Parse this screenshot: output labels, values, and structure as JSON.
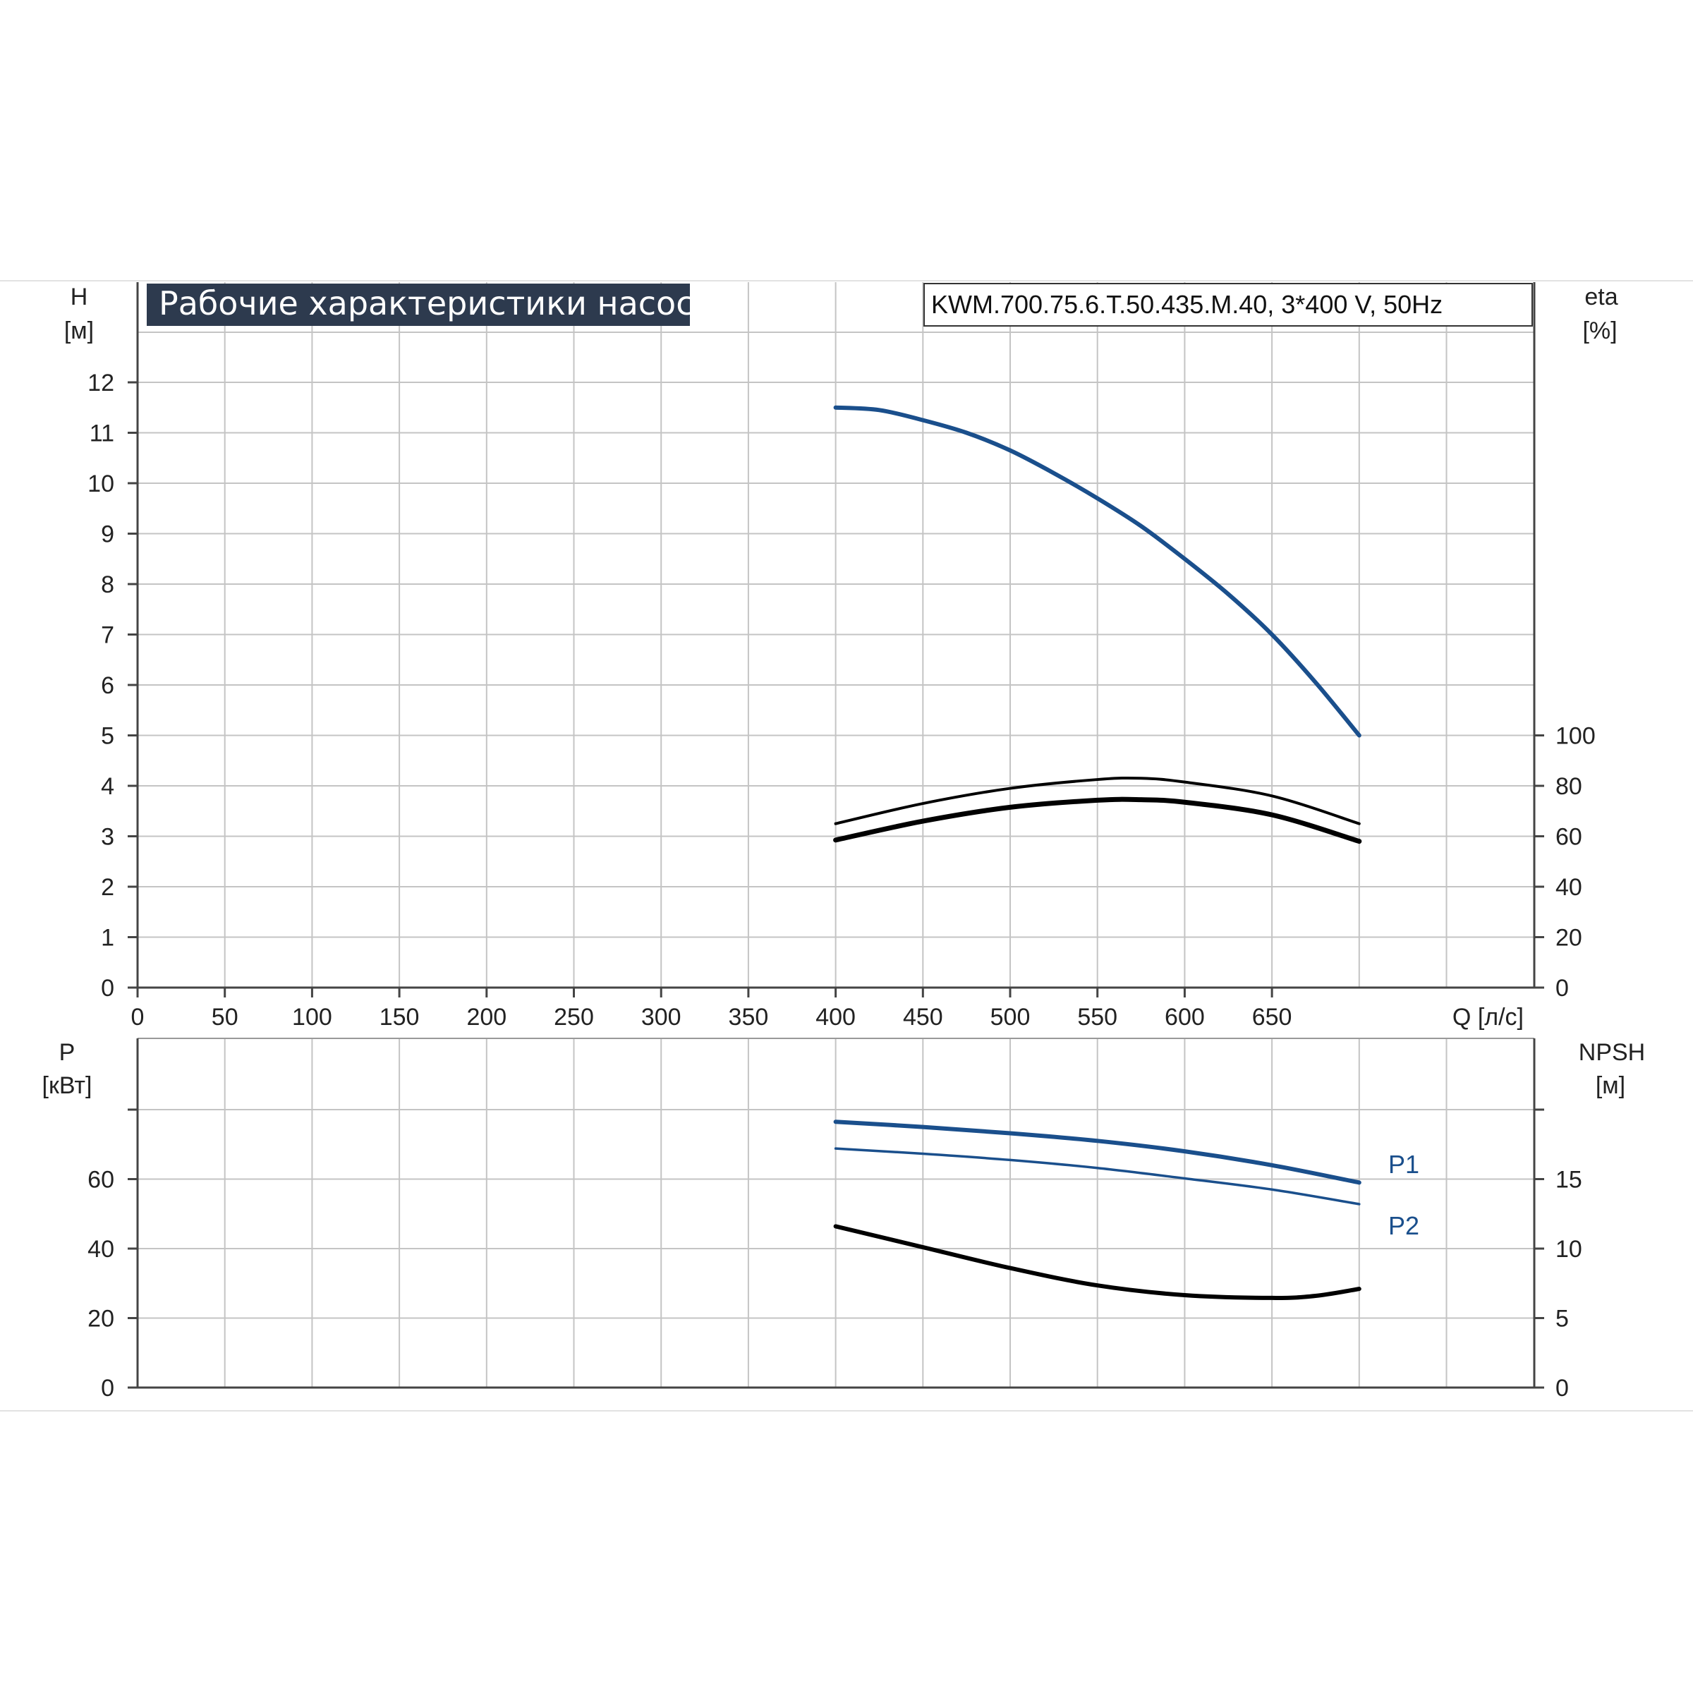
{
  "chart_data": [
    {
      "type": "line",
      "panel": "performance",
      "title": "Рабочие характеристики насоса",
      "subtitle": "KWM.700.75.6.T.50.435.M.40, 3*400 V, 50Hz",
      "xlabel": "Q [л/с]",
      "ylabel_left": [
        "H",
        "[м]"
      ],
      "ylabel_right": [
        "eta",
        "[%]"
      ],
      "xlim": [
        0,
        770
      ],
      "x_ticks": [
        0,
        50,
        100,
        150,
        200,
        250,
        300,
        350,
        400,
        450,
        500,
        550,
        600,
        650
      ],
      "ylim_left": [
        0,
        12
      ],
      "y_ticks_left": [
        0,
        1,
        2,
        3,
        4,
        5,
        6,
        7,
        8,
        9,
        10,
        11,
        12
      ],
      "ylim_right": [
        0,
        100
      ],
      "y_ticks_right": [
        0,
        20,
        40,
        60,
        80,
        100
      ],
      "grid": true,
      "series": [
        {
          "axis": "left",
          "color": "#1a4f8c",
          "x": [
            400,
            425,
            450,
            475,
            500,
            525,
            550,
            575,
            600,
            625,
            650,
            675,
            700
          ],
          "y": [
            11.5,
            11.45,
            11.25,
            11.0,
            10.65,
            10.2,
            9.7,
            9.15,
            8.5,
            7.8,
            7.0,
            6.05,
            5.0
          ]
        },
        {
          "axis": "right",
          "color": "#000000",
          "x": [
            400,
            450,
            500,
            550,
            575,
            600,
            650,
            700
          ],
          "y": [
            65,
            73,
            79,
            82.5,
            83,
            81.5,
            76,
            65
          ]
        },
        {
          "axis": "right",
          "color": "#000000",
          "x": [
            400,
            450,
            500,
            550,
            575,
            600,
            650,
            700
          ],
          "y": [
            58.5,
            66,
            71.5,
            74.3,
            74.5,
            73.5,
            68.5,
            58
          ]
        }
      ]
    },
    {
      "type": "line",
      "panel": "power",
      "xlim": [
        0,
        770
      ],
      "ylabel_left": [
        "P",
        "[кВт]"
      ],
      "ylabel_right": [
        "NPSH",
        "[м]"
      ],
      "ylim_left": [
        0,
        80
      ],
      "y_ticks_left": [
        0,
        20,
        40,
        60
      ],
      "ylim_right": [
        0,
        20
      ],
      "y_ticks_right": [
        0,
        5,
        10,
        15
      ],
      "grid": true,
      "series": [
        {
          "name": "P1",
          "axis": "left",
          "color": "#1a4f8c",
          "x": [
            400,
            450,
            500,
            550,
            600,
            650,
            700
          ],
          "y": [
            76.5,
            75,
            73.2,
            71,
            68,
            64,
            59
          ]
        },
        {
          "name": "P2",
          "axis": "left",
          "color": "#1a4f8c",
          "x": [
            400,
            450,
            500,
            550,
            600,
            650,
            700
          ],
          "y": [
            68.8,
            67.3,
            65.5,
            63.2,
            60.2,
            57,
            52.8
          ]
        },
        {
          "axis": "right",
          "color": "#000000",
          "x": [
            400,
            450,
            500,
            550,
            600,
            650,
            675,
            700
          ],
          "y": [
            11.6,
            10.1,
            8.6,
            7.35,
            6.65,
            6.45,
            6.6,
            7.1
          ]
        }
      ]
    }
  ]
}
